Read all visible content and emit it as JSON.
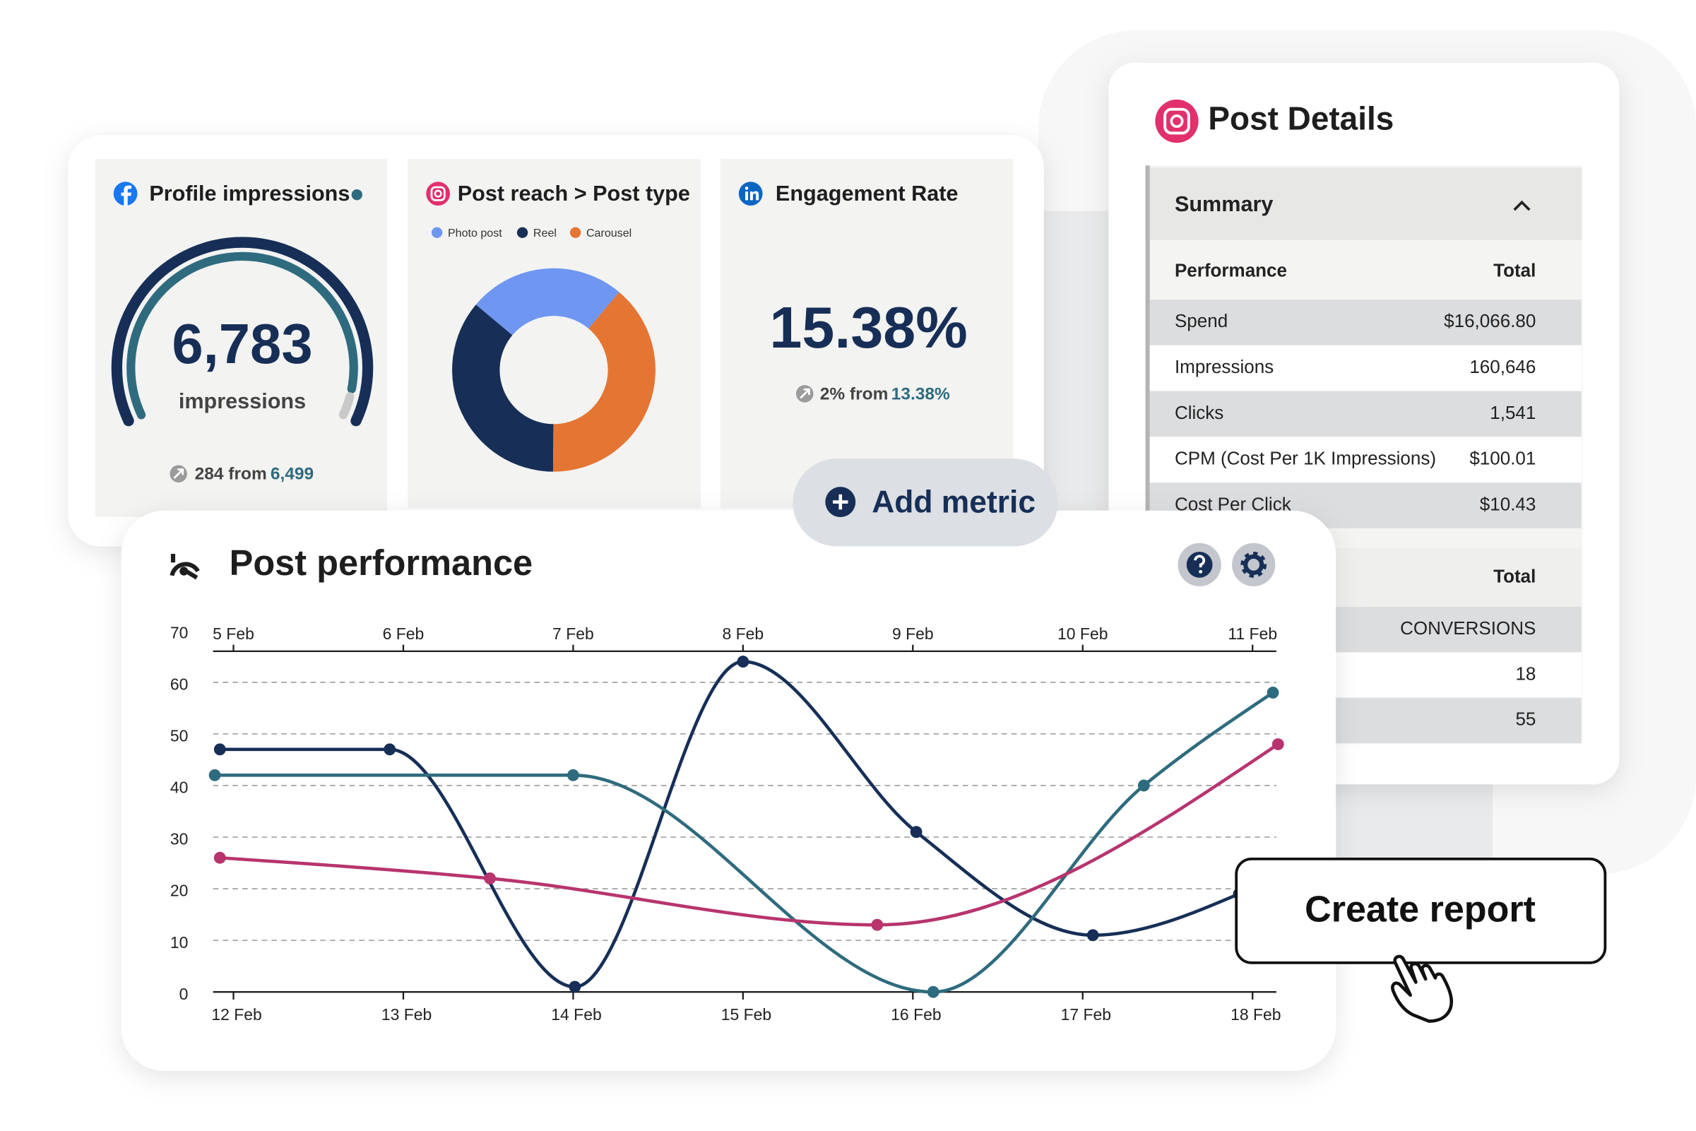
{
  "profile_card": {
    "title": "Profile impressions",
    "value": "6,783",
    "unit": "impressions",
    "change": "284 from",
    "previous": "6,499"
  },
  "reach_card": {
    "title": "Post reach > Post type",
    "segments": [
      {
        "name": "Photo post",
        "color": "#6f97f1",
        "value": 25
      },
      {
        "name": "Reel",
        "color": "#172f57",
        "value": 36
      },
      {
        "name": "Carousel",
        "color": "#e57533",
        "value": 39
      }
    ]
  },
  "engagement_card": {
    "title": "Engagement Rate",
    "value": "15.38%",
    "change": "2% from",
    "previous": "13.38%"
  },
  "add_metric": "Add metric",
  "post_details": {
    "title": "Post Details",
    "summary": "Summary",
    "columns": [
      "Performance",
      "Total"
    ],
    "rows": [
      [
        "Spend",
        "$16,066.80"
      ],
      [
        "Impressions",
        "160,646"
      ],
      [
        "Clicks",
        "1,541"
      ],
      [
        "CPM (Cost Per 1K Impressions)",
        "$100.01"
      ],
      [
        "Cost Per Click",
        "$10.43"
      ]
    ],
    "column2": "Total",
    "rows2": [
      "CONVERSIONS",
      "18",
      "55"
    ]
  },
  "chart_data": {
    "type": "line",
    "title": "Post performance",
    "xlim": [
      11.88,
      18.14
    ],
    "xticks": [
      {
        "value": 12,
        "label": "12 Feb"
      },
      {
        "value": 13,
        "label": "13 Feb"
      },
      {
        "value": 14,
        "label": "14 Feb"
      },
      {
        "value": 15,
        "label": "15 Feb"
      },
      {
        "value": 16,
        "label": "16 Feb"
      },
      {
        "value": 17,
        "label": "17 Feb"
      },
      {
        "value": 18,
        "label": "18 Feb"
      }
    ],
    "x2lim": [
      4.88,
      11.14
    ],
    "x2ticks": [
      {
        "value": 5,
        "label": "5 Feb"
      },
      {
        "value": 6,
        "label": "6 Feb"
      },
      {
        "value": 7,
        "label": "7 Feb"
      },
      {
        "value": 8,
        "label": "8 Feb"
      },
      {
        "value": 9,
        "label": "9 Feb"
      },
      {
        "value": 10,
        "label": "10 Feb"
      },
      {
        "value": 11,
        "label": "11 Feb"
      }
    ],
    "ylim": [
      0,
      70
    ],
    "yticks": [
      0,
      10,
      20,
      30,
      40,
      50,
      60,
      70
    ],
    "grid": true,
    "series": [
      {
        "color": "#172f57",
        "x": [
          11.92,
          12.92,
          14.01,
          15.0,
          16.02,
          17.06,
          17.92
        ],
        "values": [
          47,
          47,
          1,
          64,
          31,
          11,
          19
        ]
      },
      {
        "color": "#2f6b7e",
        "x": [
          11.89,
          14.0,
          16.12,
          17.36,
          18.12
        ],
        "values": [
          42,
          42,
          0,
          40,
          58
        ]
      },
      {
        "color": "#b8346e",
        "x": [
          11.92,
          13.51,
          15.79,
          18.15
        ],
        "values": [
          26,
          22,
          13,
          48
        ]
      }
    ]
  },
  "create_report": "Create report"
}
